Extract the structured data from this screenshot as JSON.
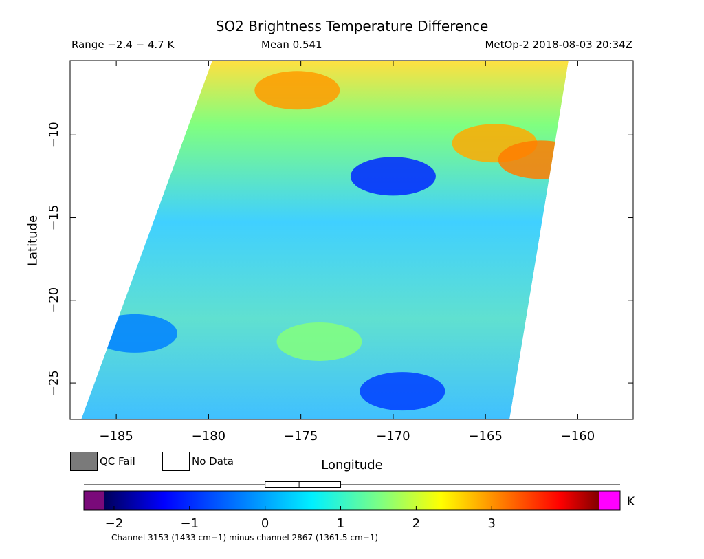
{
  "chart_data": {
    "type": "heatmap",
    "title": "SO2 Brightness Temperature Difference",
    "range_text": "Range −2.4 − 4.7 K",
    "mean_text": "Mean 0.541",
    "satellite_text": "MetOp-2 2018-08-03 20:34Z",
    "xlabel": "Longitude",
    "ylabel": "Latitude",
    "xlim": [
      -187.5,
      -157.0
    ],
    "ylim": [
      -27.2,
      -5.5
    ],
    "x_ticks": [
      -185,
      -180,
      -175,
      -170,
      -165,
      -160
    ],
    "x_tick_labels": [
      "−185",
      "−180",
      "−175",
      "−170",
      "−165",
      "−160"
    ],
    "y_ticks": [
      -10,
      -15,
      -20,
      -25
    ],
    "y_tick_labels": [
      "−10",
      "−15",
      "−20",
      "−25"
    ],
    "swath_corners": {
      "top_left": [
        -179.8,
        -5.5
      ],
      "top_right": [
        -160.5,
        -5.5
      ],
      "bottom_right": [
        -163.7,
        -27.2
      ],
      "bottom_left": [
        -186.9,
        -27.2
      ]
    },
    "regions": [
      {
        "lon": -175.2,
        "lat": -7.3,
        "value": 3.1
      },
      {
        "lon": -164.5,
        "lat": -10.5,
        "value": 3.0
      },
      {
        "lon": -162.0,
        "lat": -11.5,
        "value": 3.3
      },
      {
        "lon": -170.0,
        "lat": -12.5,
        "value": -1.2
      },
      {
        "lon": -174.0,
        "lat": -22.5,
        "value": 1.6
      },
      {
        "lon": -169.5,
        "lat": -25.5,
        "value": -1.0
      },
      {
        "lon": -184.0,
        "lat": -22.0,
        "value": -0.4
      }
    ],
    "legend": {
      "qc_fail": "QC Fail",
      "no_data": "No Data"
    },
    "colorbar": {
      "min": -2.4,
      "max": 4.7,
      "ticks": [
        -2,
        -1,
        0,
        1,
        2,
        3
      ],
      "tick_labels": [
        "−2",
        "−1",
        "0",
        "1",
        "2",
        "3"
      ],
      "unit": "K",
      "caption": "Channel 3153 (1433 cm−1) minus channel 2867 (1361.5 cm−1)",
      "box_quartiles": [
        0.0,
        0.45,
        1.0
      ],
      "whisker_range": [
        -2.4,
        4.7
      ],
      "underflow_color": "#7a0a7a",
      "overflow_color": "#ff00ff"
    },
    "colors": {
      "qc_fail": "#7a7a7a",
      "no_data": "#ffffff"
    }
  }
}
